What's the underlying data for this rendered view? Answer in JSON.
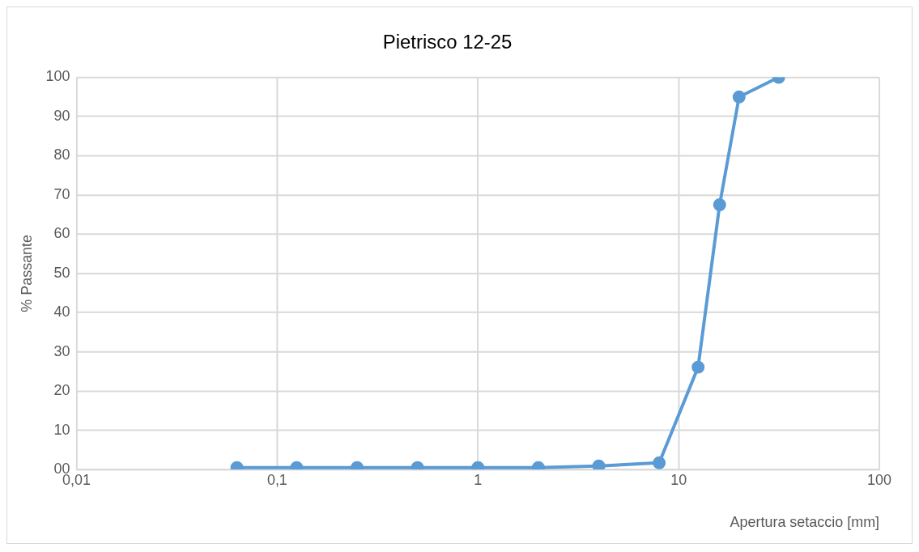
{
  "chart_data": {
    "type": "line",
    "title": "Pietrisco 12-25",
    "xlabel": "Apertura setaccio [mm]",
    "ylabel": "% Passante",
    "x": [
      0.063,
      0.125,
      0.25,
      0.5,
      1,
      2,
      4,
      8,
      12.5,
      16,
      20,
      31.5
    ],
    "series": [
      {
        "color": "#5b9bd5",
        "values": [
          0.5,
          0.5,
          0.5,
          0.5,
          0.5,
          0.5,
          0.9,
          1.7,
          26.1,
          67.5,
          95,
          100
        ]
      }
    ],
    "log": "x",
    "xlim": [
      0.01,
      100
    ],
    "xticks": [
      {
        "value": 0.01,
        "label": "0,01"
      },
      {
        "value": 0.1,
        "label": "0,1"
      },
      1,
      10,
      100
    ],
    "ylim": [
      0,
      100
    ],
    "yticks": [
      {
        "value": 0,
        "label": "00"
      },
      10,
      20,
      30,
      40,
      50,
      60,
      70,
      80,
      90,
      100
    ],
    "grid": true,
    "legend": false,
    "marker": "circle",
    "line_style": "solid"
  }
}
